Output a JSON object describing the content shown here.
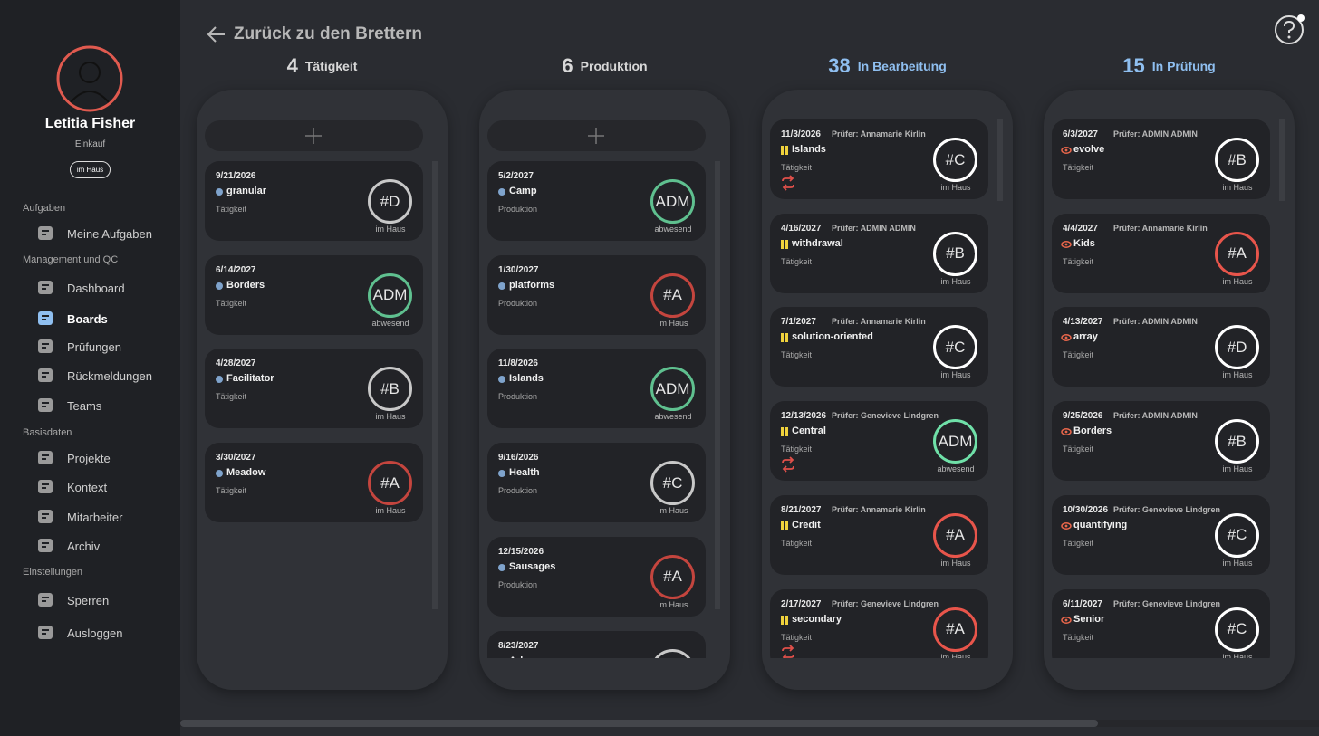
{
  "header": {
    "back": "Zurück zu den Brettern"
  },
  "profile": {
    "name": "Letitia Fisher",
    "department": "Einkauf",
    "status": "im Haus"
  },
  "nav": [
    {
      "section": "Aufgaben",
      "items": [
        "Meine Aufgaben"
      ]
    },
    {
      "section": "Management und QC",
      "items": [
        "Dashboard",
        "Boards",
        "Prüfungen",
        "Rückmeldungen",
        "Teams"
      ]
    },
    {
      "section": "Basisdaten",
      "items": [
        "Projekte",
        "Kontext",
        "Mitarbeiter",
        "Archiv"
      ]
    },
    {
      "section": "Einstellungen",
      "items": [
        "Sperren",
        "Ausloggen"
      ]
    }
  ],
  "active_nav": "Boards",
  "columns": [
    {
      "count": 4,
      "title": "Tätigkeit",
      "color": "#d8d8d8",
      "add": true,
      "icon": "dot",
      "cards": [
        {
          "date": "9/21/2026",
          "name": "granular",
          "type": "Tätigkeit",
          "badge": "#D",
          "status": "im Haus",
          "ring": "#c8c8c8"
        },
        {
          "date": "6/14/2027",
          "name": "Borders",
          "type": "Tätigkeit",
          "badge": "ADM",
          "status": "abwesend",
          "ring": "#5fc08f"
        },
        {
          "date": "4/28/2027",
          "name": "Facilitator",
          "type": "Tätigkeit",
          "badge": "#B",
          "status": "im Haus",
          "ring": "#c8c8c8"
        },
        {
          "date": "3/30/2027",
          "name": "Meadow",
          "type": "Tätigkeit",
          "badge": "#A",
          "status": "im Haus",
          "ring": "#c4453e"
        }
      ]
    },
    {
      "count": 6,
      "title": "Produktion",
      "color": "#d8d8d8",
      "add": true,
      "icon": "dot",
      "cards": [
        {
          "date": "5/2/2027",
          "name": "Camp",
          "type": "Produktion",
          "badge": "ADM",
          "status": "abwesend",
          "ring": "#5fc08f"
        },
        {
          "date": "1/30/2027",
          "name": "platforms",
          "type": "Produktion",
          "badge": "#A",
          "status": "im Haus",
          "ring": "#c4453e"
        },
        {
          "date": "11/8/2026",
          "name": "Islands",
          "type": "Produktion",
          "badge": "ADM",
          "status": "abwesend",
          "ring": "#5fc08f"
        },
        {
          "date": "9/16/2026",
          "name": "Health",
          "type": "Produktion",
          "badge": "#C",
          "status": "im Haus",
          "ring": "#c8c8c8"
        },
        {
          "date": "12/15/2026",
          "name": "Sausages",
          "type": "Produktion",
          "badge": "#A",
          "status": "im Haus",
          "ring": "#c4453e"
        },
        {
          "date": "8/23/2027",
          "name": "Arkansas",
          "ring": "#c8c8c8"
        }
      ]
    },
    {
      "count": 38,
      "title": "In Bearbeitung",
      "color": "#8fbff0",
      "add": false,
      "icon": "pause",
      "cards": [
        {
          "date": "11/3/2026",
          "reviewer": "Prüfer: Annamarie Kirlin",
          "name": "Islands",
          "type": "Tätigkeit",
          "repeat": true,
          "badge": "#C",
          "status": "im Haus",
          "ring": "#ffffff"
        },
        {
          "date": "4/16/2027",
          "reviewer": "Prüfer: ADMIN ADMIN",
          "name": "withdrawal",
          "type": "Tätigkeit",
          "badge": "#B",
          "status": "im Haus",
          "ring": "#ffffff"
        },
        {
          "date": "7/1/2027",
          "reviewer": "Prüfer: Annamarie Kirlin",
          "name": "solution-oriented",
          "type": "Tätigkeit",
          "badge": "#C",
          "status": "im Haus",
          "ring": "#ffffff"
        },
        {
          "date": "12/13/2026",
          "reviewer": "Prüfer: Genevieve Lindgren",
          "name": "Central",
          "type": "Tätigkeit",
          "repeat": true,
          "badge": "ADM",
          "status": "abwesend",
          "ring": "#6fe0a8"
        },
        {
          "date": "8/21/2027",
          "reviewer": "Prüfer: Annamarie Kirlin",
          "name": "Credit",
          "type": "Tätigkeit",
          "badge": "#A",
          "status": "im Haus",
          "ring": "#e8554b"
        },
        {
          "date": "2/17/2027",
          "reviewer": "Prüfer: Genevieve Lindgren",
          "name": "secondary",
          "type": "Tätigkeit",
          "repeat": true,
          "badge": "#A",
          "status": "im Haus",
          "ring": "#e8554b"
        }
      ]
    },
    {
      "count": 15,
      "title": "In Prüfung",
      "color": "#8fbff0",
      "add": false,
      "icon": "eye",
      "cards": [
        {
          "date": "6/3/2027",
          "reviewer": "Prüfer: ADMIN ADMIN",
          "name": "evolve",
          "type": "Tätigkeit",
          "badge": "#B",
          "status": "im Haus",
          "ring": "#ffffff"
        },
        {
          "date": "4/4/2027",
          "reviewer": "Prüfer: Annamarie Kirlin",
          "name": "Kids",
          "type": "Tätigkeit",
          "badge": "#A",
          "status": "im Haus",
          "ring": "#e8554b"
        },
        {
          "date": "4/13/2027",
          "reviewer": "Prüfer: ADMIN ADMIN",
          "name": "array",
          "type": "Tätigkeit",
          "badge": "#D",
          "status": "im Haus",
          "ring": "#ffffff"
        },
        {
          "date": "9/25/2026",
          "reviewer": "Prüfer: ADMIN ADMIN",
          "name": "Borders",
          "type": "Tätigkeit",
          "badge": "#B",
          "status": "im Haus",
          "ring": "#ffffff"
        },
        {
          "date": "10/30/2026",
          "reviewer": "Prüfer: Genevieve Lindgren",
          "name": "quantifying",
          "type": "Tätigkeit",
          "badge": "#C",
          "status": "im Haus",
          "ring": "#ffffff"
        },
        {
          "date": "6/11/2027",
          "reviewer": "Prüfer: Genevieve Lindgren",
          "name": "Senior",
          "type": "Tätigkeit",
          "badge": "#C",
          "status": "im Haus",
          "ring": "#ffffff"
        }
      ]
    }
  ]
}
